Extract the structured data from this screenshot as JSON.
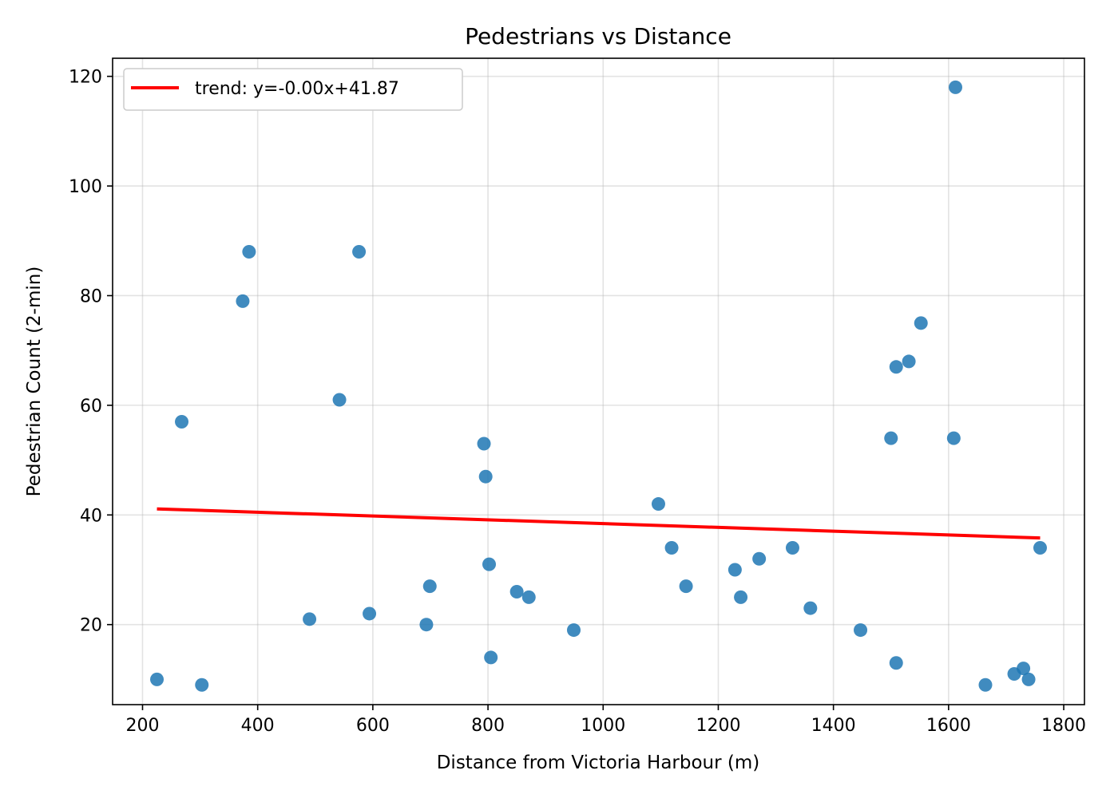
{
  "chart_data": {
    "type": "scatter",
    "title": "Pedestrians vs Distance",
    "xlabel": "Distance from Victoria Harbour (m)",
    "ylabel": "Pedestrian Count (2-min)",
    "xlim": [
      148,
      1836
    ],
    "ylim": [
      5.4,
      123.3
    ],
    "xticks": [
      200,
      400,
      600,
      800,
      1000,
      1200,
      1400,
      1600,
      1800
    ],
    "yticks": [
      20,
      40,
      60,
      80,
      100,
      120
    ],
    "grid": true,
    "legend_position": "top-left",
    "point_color": "#1f77b4",
    "trend_color": "#ff0000",
    "series": [
      {
        "values": [
          {
            "x": 225,
            "y": 10
          },
          {
            "x": 268,
            "y": 57
          },
          {
            "x": 303,
            "y": 9
          },
          {
            "x": 374,
            "y": 79
          },
          {
            "x": 385,
            "y": 88
          },
          {
            "x": 490,
            "y": 21
          },
          {
            "x": 542,
            "y": 61
          },
          {
            "x": 576,
            "y": 88
          },
          {
            "x": 594,
            "y": 22
          },
          {
            "x": 693,
            "y": 20
          },
          {
            "x": 699,
            "y": 27
          },
          {
            "x": 793,
            "y": 53
          },
          {
            "x": 796,
            "y": 47
          },
          {
            "x": 802,
            "y": 31
          },
          {
            "x": 805,
            "y": 14
          },
          {
            "x": 850,
            "y": 26
          },
          {
            "x": 871,
            "y": 25
          },
          {
            "x": 949,
            "y": 19
          },
          {
            "x": 1096,
            "y": 42
          },
          {
            "x": 1119,
            "y": 34
          },
          {
            "x": 1144,
            "y": 27
          },
          {
            "x": 1229,
            "y": 30
          },
          {
            "x": 1239,
            "y": 25
          },
          {
            "x": 1271,
            "y": 32
          },
          {
            "x": 1329,
            "y": 34
          },
          {
            "x": 1360,
            "y": 23
          },
          {
            "x": 1447,
            "y": 19
          },
          {
            "x": 1500,
            "y": 54
          },
          {
            "x": 1509,
            "y": 67
          },
          {
            "x": 1509,
            "y": 13
          },
          {
            "x": 1531,
            "y": 68
          },
          {
            "x": 1552,
            "y": 75
          },
          {
            "x": 1609,
            "y": 54
          },
          {
            "x": 1612,
            "y": 118
          },
          {
            "x": 1664,
            "y": 9
          },
          {
            "x": 1714,
            "y": 11
          },
          {
            "x": 1730,
            "y": 12
          },
          {
            "x": 1739,
            "y": 10
          },
          {
            "x": 1759,
            "y": 34
          }
        ]
      },
      {
        "name": "trend: y=-0.00x+41.87",
        "type": "line",
        "values": [
          {
            "x": 225,
            "y": 41.1
          },
          {
            "x": 1759,
            "y": 35.8
          }
        ]
      }
    ]
  }
}
